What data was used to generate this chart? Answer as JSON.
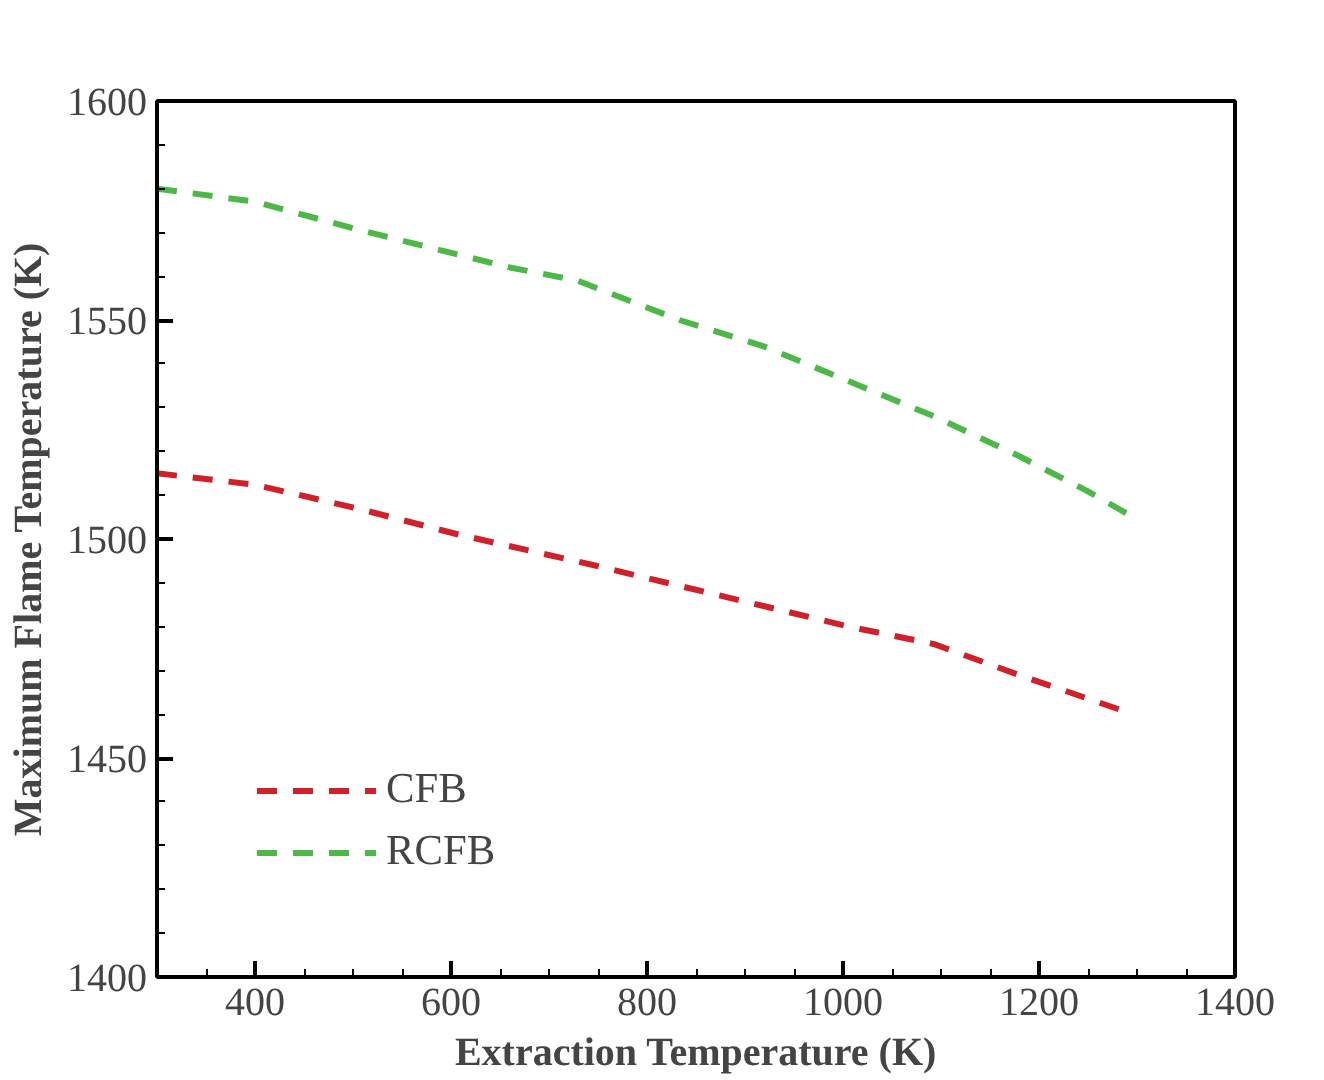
{
  "chart_data": {
    "type": "line",
    "xlabel": "Extraction Temperature (K)",
    "ylabel": "Maximum Flame Temperature (K)",
    "xlim": [
      300,
      1400
    ],
    "xticks": [
      400,
      600,
      800,
      1000,
      1200,
      1400
    ],
    "ylim": [
      1400,
      1600
    ],
    "yticks": [
      1400,
      1450,
      1500,
      1550,
      1600
    ],
    "grid": false,
    "legend": "bottom left",
    "line_style": "dashed",
    "marker": "none",
    "series": [
      {
        "name": "CFB",
        "color": "#d0202a",
        "x": [
          300,
          400,
          504,
          608,
          746,
          876,
          1006,
          1093,
          1179,
          1283
        ],
        "values": [
          1515,
          1512.4,
          1507,
          1501,
          1494,
          1487,
          1480,
          1476,
          1469,
          1461
        ]
      },
      {
        "name": "RCFB",
        "color": "#4db848",
        "x": [
          300,
          400,
          504,
          660,
          729,
          833,
          919,
          1006,
          1093,
          1179,
          1249,
          1296
        ],
        "values": [
          1580,
          1577,
          1570.7,
          1562,
          1559,
          1550,
          1544,
          1536,
          1528,
          1519,
          1511,
          1505
        ]
      }
    ]
  }
}
